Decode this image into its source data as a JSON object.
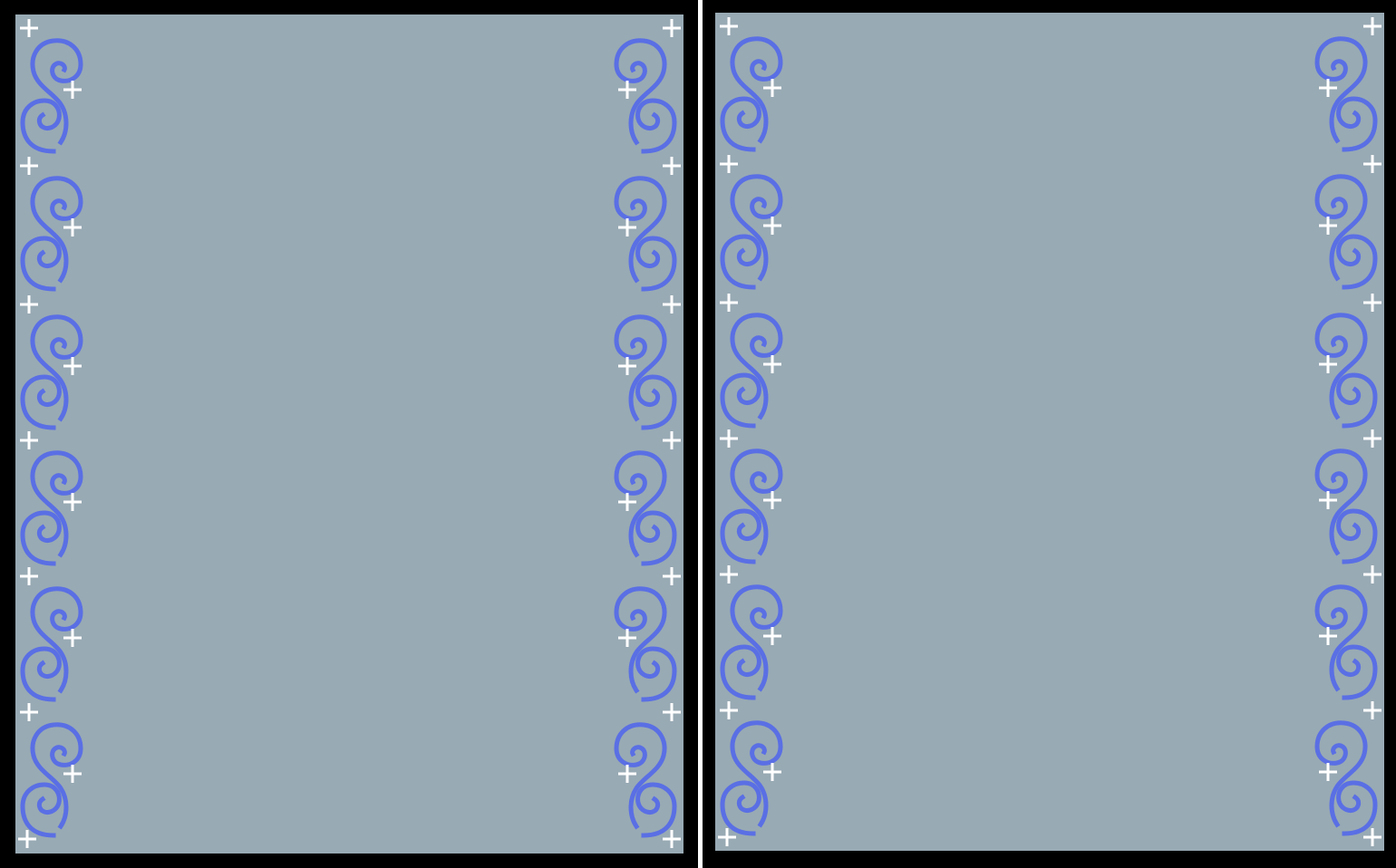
{
  "screen": {
    "title": "",
    "panels": [
      {
        "id": "left-panel",
        "label": ""
      },
      {
        "id": "right-panel",
        "label": ""
      }
    ]
  },
  "colors": {
    "outer_background": "#000000",
    "divider": "#ffffff",
    "panel_fill": "#98aab4",
    "swirl": "#5a6fe4",
    "sparkle": "#ffffff"
  },
  "icons": {
    "swirl": "swirl-icon",
    "sparkle": "sparkle-icon"
  }
}
